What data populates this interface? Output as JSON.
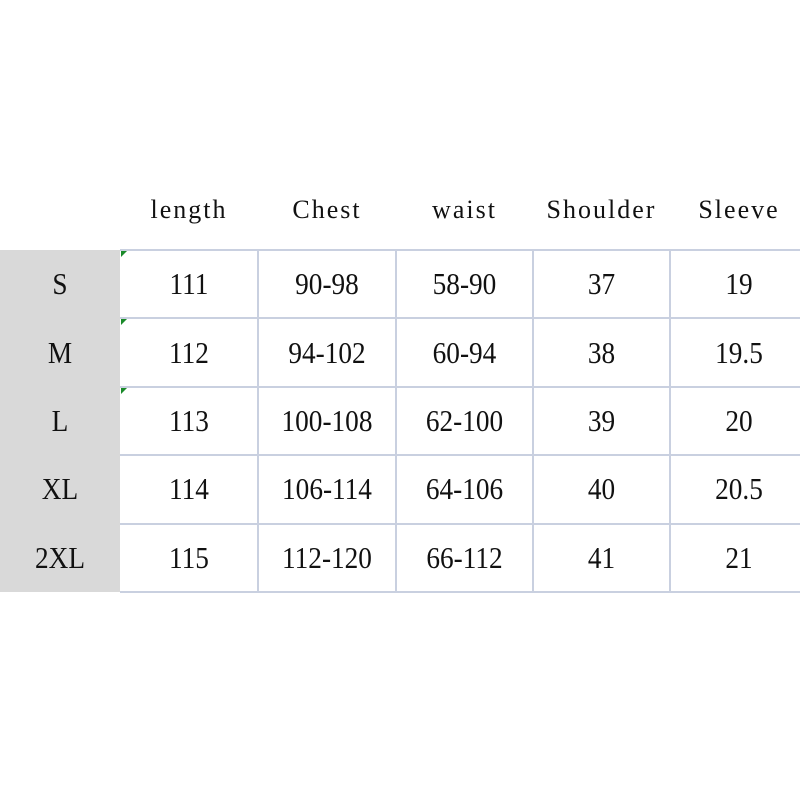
{
  "table": {
    "columns": [
      "length",
      "Chest",
      "waist",
      "Shoulder",
      "Sleeve"
    ],
    "rows": [
      [
        "S",
        "111",
        "90-98",
        "58-90",
        "37",
        "19"
      ],
      [
        "M",
        "112",
        "94-102",
        "60-94",
        "38",
        "19.5"
      ],
      [
        "L",
        "113",
        "100-108",
        "62-100",
        "39",
        "20"
      ],
      [
        "XL",
        "114",
        "106-114",
        "64-106",
        "40",
        "20.5"
      ],
      [
        "2XL",
        "115",
        "112-120",
        "66-112",
        "41",
        "21"
      ]
    ]
  }
}
